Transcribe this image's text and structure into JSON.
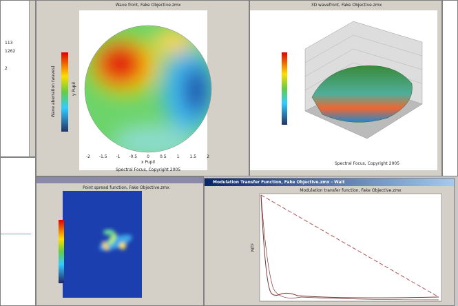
{
  "left_panel": {
    "lines": [
      "113",
      "1262",
      "2"
    ]
  },
  "windows": {
    "wavefront": {
      "title": "Wave front, Fake Objective.zmx",
      "x_label": "x Pupil",
      "y_label": "y Pupil",
      "colorbar_label": "Wave aberration (waves)",
      "x_ticks": [
        "-2",
        "-1.5",
        "-1",
        "-0.5",
        "0",
        "0.5",
        "1",
        "1.5",
        "2"
      ],
      "footer": "Spectral Focus, Copyright 2005"
    },
    "surface3d": {
      "title": "3D wavefront, Fake Objective.zmx",
      "footer": "Spectral Focus, Copyright 2005"
    },
    "psf": {
      "title": "Point spread function, Fake Objective.zmx"
    },
    "mtf": {
      "window_title": "Modulation Transfer Function, Fake Objective.zmx - Wait",
      "title": "Modulation transfer function, Fake Objective.zmx",
      "y_label": "MTF"
    }
  }
}
